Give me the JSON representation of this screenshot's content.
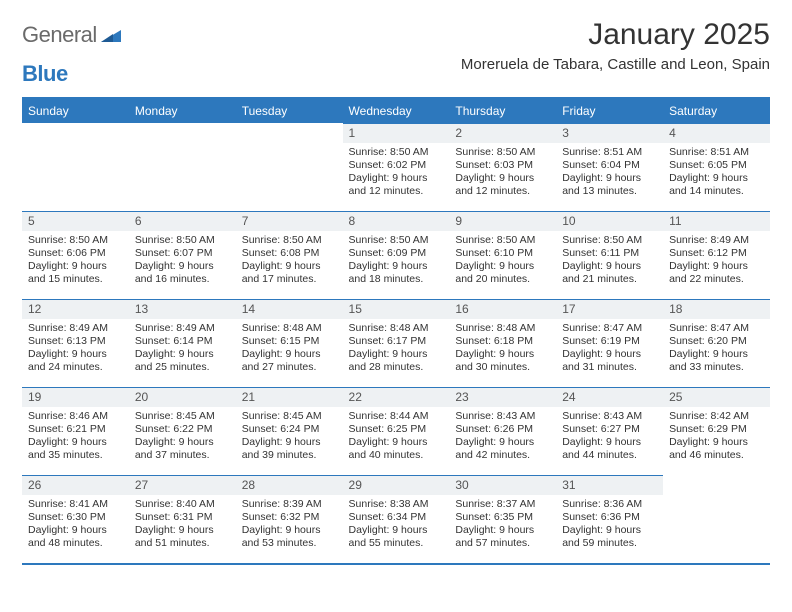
{
  "logo": {
    "part1": "General",
    "part2": "Blue"
  },
  "title": "January 2025",
  "location": "Moreruela de Tabara, Castille and Leon, Spain",
  "colors": {
    "header_bg": "#2d78bd",
    "header_text": "#ffffff",
    "daynum_bg": "#eef1f3",
    "text": "#333333",
    "logo_gray": "#6a6a6a",
    "logo_blue": "#2d78bd"
  },
  "weekdays": [
    "Sunday",
    "Monday",
    "Tuesday",
    "Wednesday",
    "Thursday",
    "Friday",
    "Saturday"
  ],
  "weeks": [
    [
      {
        "n": "",
        "empty": true
      },
      {
        "n": "",
        "empty": true
      },
      {
        "n": "",
        "empty": true
      },
      {
        "n": "1",
        "sr": "Sunrise: 8:50 AM",
        "ss": "Sunset: 6:02 PM",
        "d1": "Daylight: 9 hours",
        "d2": "and 12 minutes."
      },
      {
        "n": "2",
        "sr": "Sunrise: 8:50 AM",
        "ss": "Sunset: 6:03 PM",
        "d1": "Daylight: 9 hours",
        "d2": "and 12 minutes."
      },
      {
        "n": "3",
        "sr": "Sunrise: 8:51 AM",
        "ss": "Sunset: 6:04 PM",
        "d1": "Daylight: 9 hours",
        "d2": "and 13 minutes."
      },
      {
        "n": "4",
        "sr": "Sunrise: 8:51 AM",
        "ss": "Sunset: 6:05 PM",
        "d1": "Daylight: 9 hours",
        "d2": "and 14 minutes."
      }
    ],
    [
      {
        "n": "5",
        "sr": "Sunrise: 8:50 AM",
        "ss": "Sunset: 6:06 PM",
        "d1": "Daylight: 9 hours",
        "d2": "and 15 minutes."
      },
      {
        "n": "6",
        "sr": "Sunrise: 8:50 AM",
        "ss": "Sunset: 6:07 PM",
        "d1": "Daylight: 9 hours",
        "d2": "and 16 minutes."
      },
      {
        "n": "7",
        "sr": "Sunrise: 8:50 AM",
        "ss": "Sunset: 6:08 PM",
        "d1": "Daylight: 9 hours",
        "d2": "and 17 minutes."
      },
      {
        "n": "8",
        "sr": "Sunrise: 8:50 AM",
        "ss": "Sunset: 6:09 PM",
        "d1": "Daylight: 9 hours",
        "d2": "and 18 minutes."
      },
      {
        "n": "9",
        "sr": "Sunrise: 8:50 AM",
        "ss": "Sunset: 6:10 PM",
        "d1": "Daylight: 9 hours",
        "d2": "and 20 minutes."
      },
      {
        "n": "10",
        "sr": "Sunrise: 8:50 AM",
        "ss": "Sunset: 6:11 PM",
        "d1": "Daylight: 9 hours",
        "d2": "and 21 minutes."
      },
      {
        "n": "11",
        "sr": "Sunrise: 8:49 AM",
        "ss": "Sunset: 6:12 PM",
        "d1": "Daylight: 9 hours",
        "d2": "and 22 minutes."
      }
    ],
    [
      {
        "n": "12",
        "sr": "Sunrise: 8:49 AM",
        "ss": "Sunset: 6:13 PM",
        "d1": "Daylight: 9 hours",
        "d2": "and 24 minutes."
      },
      {
        "n": "13",
        "sr": "Sunrise: 8:49 AM",
        "ss": "Sunset: 6:14 PM",
        "d1": "Daylight: 9 hours",
        "d2": "and 25 minutes."
      },
      {
        "n": "14",
        "sr": "Sunrise: 8:48 AM",
        "ss": "Sunset: 6:15 PM",
        "d1": "Daylight: 9 hours",
        "d2": "and 27 minutes."
      },
      {
        "n": "15",
        "sr": "Sunrise: 8:48 AM",
        "ss": "Sunset: 6:17 PM",
        "d1": "Daylight: 9 hours",
        "d2": "and 28 minutes."
      },
      {
        "n": "16",
        "sr": "Sunrise: 8:48 AM",
        "ss": "Sunset: 6:18 PM",
        "d1": "Daylight: 9 hours",
        "d2": "and 30 minutes."
      },
      {
        "n": "17",
        "sr": "Sunrise: 8:47 AM",
        "ss": "Sunset: 6:19 PM",
        "d1": "Daylight: 9 hours",
        "d2": "and 31 minutes."
      },
      {
        "n": "18",
        "sr": "Sunrise: 8:47 AM",
        "ss": "Sunset: 6:20 PM",
        "d1": "Daylight: 9 hours",
        "d2": "and 33 minutes."
      }
    ],
    [
      {
        "n": "19",
        "sr": "Sunrise: 8:46 AM",
        "ss": "Sunset: 6:21 PM",
        "d1": "Daylight: 9 hours",
        "d2": "and 35 minutes."
      },
      {
        "n": "20",
        "sr": "Sunrise: 8:45 AM",
        "ss": "Sunset: 6:22 PM",
        "d1": "Daylight: 9 hours",
        "d2": "and 37 minutes."
      },
      {
        "n": "21",
        "sr": "Sunrise: 8:45 AM",
        "ss": "Sunset: 6:24 PM",
        "d1": "Daylight: 9 hours",
        "d2": "and 39 minutes."
      },
      {
        "n": "22",
        "sr": "Sunrise: 8:44 AM",
        "ss": "Sunset: 6:25 PM",
        "d1": "Daylight: 9 hours",
        "d2": "and 40 minutes."
      },
      {
        "n": "23",
        "sr": "Sunrise: 8:43 AM",
        "ss": "Sunset: 6:26 PM",
        "d1": "Daylight: 9 hours",
        "d2": "and 42 minutes."
      },
      {
        "n": "24",
        "sr": "Sunrise: 8:43 AM",
        "ss": "Sunset: 6:27 PM",
        "d1": "Daylight: 9 hours",
        "d2": "and 44 minutes."
      },
      {
        "n": "25",
        "sr": "Sunrise: 8:42 AM",
        "ss": "Sunset: 6:29 PM",
        "d1": "Daylight: 9 hours",
        "d2": "and 46 minutes."
      }
    ],
    [
      {
        "n": "26",
        "sr": "Sunrise: 8:41 AM",
        "ss": "Sunset: 6:30 PM",
        "d1": "Daylight: 9 hours",
        "d2": "and 48 minutes."
      },
      {
        "n": "27",
        "sr": "Sunrise: 8:40 AM",
        "ss": "Sunset: 6:31 PM",
        "d1": "Daylight: 9 hours",
        "d2": "and 51 minutes."
      },
      {
        "n": "28",
        "sr": "Sunrise: 8:39 AM",
        "ss": "Sunset: 6:32 PM",
        "d1": "Daylight: 9 hours",
        "d2": "and 53 minutes."
      },
      {
        "n": "29",
        "sr": "Sunrise: 8:38 AM",
        "ss": "Sunset: 6:34 PM",
        "d1": "Daylight: 9 hours",
        "d2": "and 55 minutes."
      },
      {
        "n": "30",
        "sr": "Sunrise: 8:37 AM",
        "ss": "Sunset: 6:35 PM",
        "d1": "Daylight: 9 hours",
        "d2": "and 57 minutes."
      },
      {
        "n": "31",
        "sr": "Sunrise: 8:36 AM",
        "ss": "Sunset: 6:36 PM",
        "d1": "Daylight: 9 hours",
        "d2": "and 59 minutes."
      },
      {
        "n": "",
        "empty": true
      }
    ]
  ]
}
